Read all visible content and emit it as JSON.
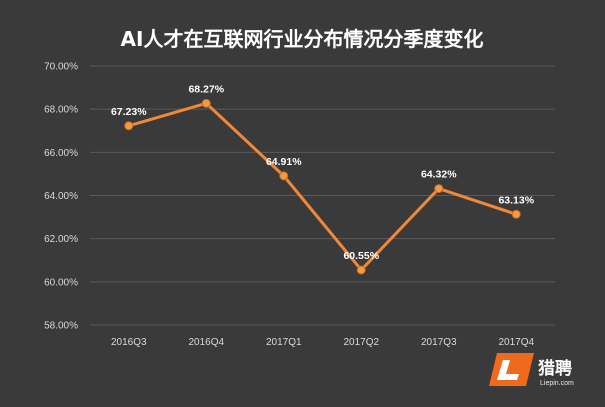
{
  "chart_data": {
    "type": "line",
    "title": "AI人才在互联网行业分布情况分季度变化",
    "xlabel": "",
    "ylabel": "",
    "categories": [
      "2016Q3",
      "2016Q4",
      "2017Q1",
      "2017Q2",
      "2017Q3",
      "2017Q4"
    ],
    "series": [
      {
        "values": [
          67.23,
          68.27,
          64.91,
          60.55,
          64.32,
          63.13
        ],
        "data_labels": [
          "67.23%",
          "68.27%",
          "64.91%",
          "60.55%",
          "64.32%",
          "63.13%"
        ]
      }
    ],
    "ylim": [
      58,
      70
    ],
    "y_ticks": [
      58,
      60,
      62,
      64,
      66,
      68,
      70
    ],
    "y_tick_labels": [
      "58.00%",
      "60.00%",
      "62.00%",
      "64.00%",
      "66.00%",
      "68.00%",
      "70.00%"
    ],
    "grid": true,
    "legend": "none"
  },
  "colors": {
    "background": "#3a3a3a",
    "grid": "#5a5a5a",
    "line": "#f0883a",
    "marker": "#f29a44",
    "text": "#ffffff",
    "axis_text": "#d9d9d9",
    "logo_orange": "#f06a1e"
  },
  "logo": {
    "name": "猎聘",
    "domain": "Liepin.com",
    "icon": "liepin-l-logo-icon"
  }
}
